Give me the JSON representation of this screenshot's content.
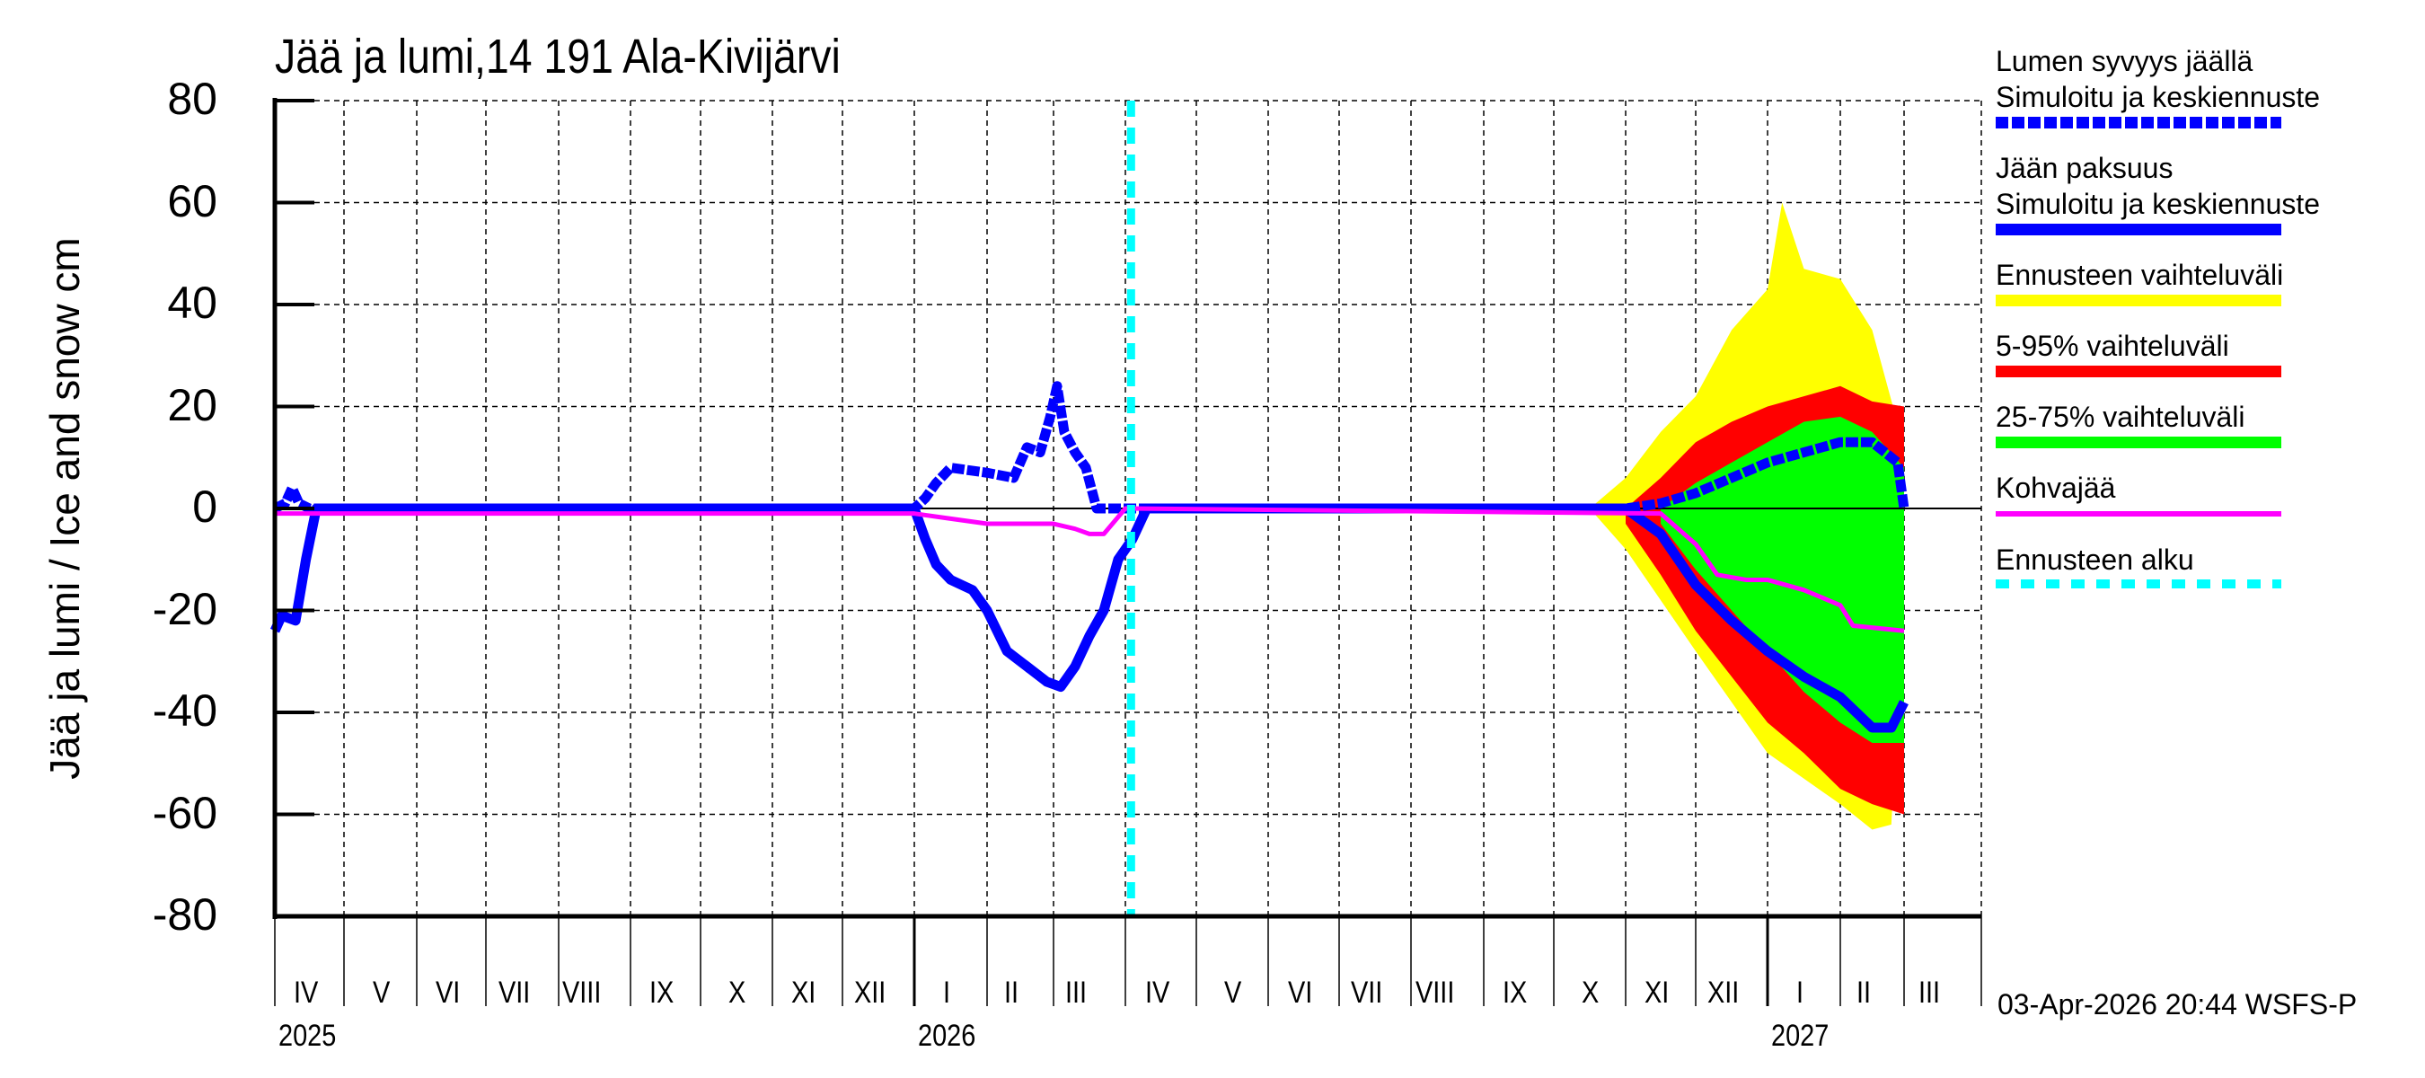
{
  "title": "Jää ja lumi,14 191 Ala-Kivijärvi",
  "y_axis_label": "Jää ja lumi / Ice and snow    cm",
  "timestamp": "03-Apr-2026 20:44 WSFS-P",
  "colors": {
    "snow": "#0000ff",
    "ice": "#0000ff",
    "range_full": "#ffff00",
    "range_5_95": "#ff0000",
    "range_25_75": "#00ff00",
    "slush": "#ff00ff",
    "forecast_start": "#00ffff"
  },
  "legend": [
    {
      "label": "Lumen syvyys jäällä",
      "sublabel": "Simuloitu ja keskiennuste",
      "color": "#0000ff",
      "style": "dotted-thick"
    },
    {
      "label": "Jään paksuus",
      "sublabel": "Simuloitu ja keskiennuste",
      "color": "#0000ff",
      "style": "solid"
    },
    {
      "label": "Ennusteen vaihteluväli",
      "color": "#ffff00",
      "style": "solid"
    },
    {
      "label": "5-95% vaihteluväli",
      "color": "#ff0000",
      "style": "solid"
    },
    {
      "label": "25-75% vaihteluväli",
      "color": "#00ff00",
      "style": "solid"
    },
    {
      "label": "Kohvajää",
      "color": "#ff00ff",
      "style": "thin"
    },
    {
      "label": "Ennusteen alku",
      "color": "#00ffff",
      "style": "dashed"
    }
  ],
  "x_axis": {
    "months": [
      "IV",
      "V",
      "VI",
      "VII",
      "VIII",
      "IX",
      "X",
      "XI",
      "XII",
      "I",
      "II",
      "III",
      "IV",
      "V",
      "VI",
      "VII",
      "VIII",
      "IX",
      "X",
      "XI",
      "XII",
      "I",
      "II",
      "III"
    ],
    "years": [
      {
        "label": "2025",
        "month_index": 0
      },
      {
        "label": "2026",
        "month_index": 9
      },
      {
        "label": "2027",
        "month_index": 21
      }
    ]
  },
  "chart_data": {
    "type": "area",
    "title": "Jää ja lumi,14 191 Ala-Kivijärvi",
    "xlabel": "",
    "ylabel": "Jää ja lumi / Ice and snow cm",
    "ylim": [
      -80,
      80
    ],
    "yticks": [
      80,
      60,
      40,
      20,
      0,
      -20,
      -40,
      -60,
      -80
    ],
    "xlim": [
      "2025-04-01",
      "2027-04-01"
    ],
    "grid": true,
    "legend_position": "right",
    "forecast_start": "2026-04-03",
    "note": "Snow depth plotted as positive, ice thickness as negative (cm). x in months since 2025-04-01.",
    "series": [
      {
        "name": "Lumen syvyys jäällä (Simuloitu ja keskiennuste)",
        "x": [
          0,
          0.15,
          0.25,
          0.35,
          0.5,
          0.6,
          9.0,
          9.15,
          9.3,
          9.5,
          10.0,
          10.4,
          10.6,
          10.8,
          10.95,
          11.05,
          11.15,
          11.3,
          11.45,
          11.6,
          11.65,
          12.2,
          19.0,
          19.5,
          20.0,
          20.5,
          21.0,
          21.5,
          22.0,
          22.5,
          22.9,
          23.0
        ],
        "values": [
          0,
          1,
          4,
          1,
          0,
          0,
          0,
          2,
          5,
          8,
          7,
          6,
          12,
          11,
          18,
          24,
          15,
          11,
          8,
          0,
          0,
          0,
          0,
          1,
          3,
          6,
          9,
          11,
          13,
          13,
          9,
          0
        ]
      },
      {
        "name": "Jään paksuus (Simuloitu ja keskiennuste)",
        "x": [
          0,
          0.1,
          0.3,
          0.45,
          0.6,
          0.7,
          9.0,
          9.15,
          9.3,
          9.5,
          9.8,
          10.0,
          10.3,
          10.6,
          10.9,
          11.1,
          11.3,
          11.5,
          11.7,
          11.9,
          12.1,
          12.3,
          12.4,
          12.5,
          19.0,
          19.5,
          20.0,
          20.5,
          21.0,
          21.5,
          22.0,
          22.5,
          22.8,
          23.0
        ],
        "values": [
          -24,
          -21,
          -22,
          -10,
          0,
          0,
          0,
          -6,
          -11,
          -14,
          -16,
          -20,
          -28,
          -31,
          -34,
          -35,
          -31,
          -25,
          -20,
          -10,
          -6,
          0,
          0,
          0,
          0,
          -5,
          -15,
          -22,
          -28,
          -33,
          -37,
          -43,
          -43,
          -38
        ]
      },
      {
        "name": "Kohvajää",
        "x": [
          0,
          9.0,
          9.5,
          10.0,
          10.5,
          11.0,
          11.3,
          11.5,
          11.7,
          12.0,
          19.5,
          20.0,
          20.3,
          20.7,
          21.0,
          21.5,
          22.0,
          22.2,
          23.0
        ],
        "values": [
          -1,
          -1,
          -2,
          -3,
          -3,
          -3,
          -4,
          -5,
          -5,
          0,
          -1,
          -7,
          -13,
          -14,
          -14,
          -16,
          -19,
          -23,
          -24
        ]
      },
      {
        "name": "Ennusteen vaihteluväli (upper)",
        "x": [
          18.5,
          19.0,
          19.5,
          20.0,
          20.5,
          21.0,
          21.2,
          21.5,
          22.0,
          22.5,
          23.0
        ],
        "values": [
          0,
          6,
          15,
          22,
          35,
          43,
          60,
          47,
          45,
          35,
          12
        ]
      },
      {
        "name": "Ennusteen vaihteluväli (lower)",
        "x": [
          18.5,
          19.0,
          19.5,
          20.0,
          20.5,
          21.0,
          21.5,
          22.0,
          22.5,
          22.8,
          23.0
        ],
        "values": [
          0,
          -8,
          -18,
          -28,
          -38,
          -48,
          -53,
          -58,
          -63,
          -62,
          -15
        ]
      },
      {
        "name": "5-95% vaihteluväli (upper)",
        "x": [
          19.0,
          19.5,
          20.0,
          20.5,
          21.0,
          21.5,
          22.0,
          22.5,
          23.0
        ],
        "values": [
          0,
          6,
          13,
          17,
          20,
          22,
          24,
          21,
          20
        ]
      },
      {
        "name": "5-95% vaihteluväli (lower)",
        "x": [
          19.0,
          19.5,
          20.0,
          20.5,
          21.0,
          21.5,
          22.0,
          22.5,
          23.0
        ],
        "values": [
          -3,
          -13,
          -24,
          -33,
          -42,
          -48,
          -55,
          -58,
          -60
        ]
      },
      {
        "name": "25-75% vaihteluväli (upper)",
        "x": [
          19.5,
          20.0,
          20.5,
          21.0,
          21.5,
          22.0,
          22.5,
          23.0
        ],
        "values": [
          0,
          5,
          9,
          13,
          17,
          18,
          15,
          8
        ]
      },
      {
        "name": "25-75% vaihteluväli (lower)",
        "x": [
          19.5,
          20.0,
          20.5,
          21.0,
          21.5,
          22.0,
          22.5,
          23.0
        ],
        "values": [
          -3,
          -12,
          -20,
          -28,
          -36,
          -42,
          -46,
          -46
        ]
      }
    ]
  }
}
